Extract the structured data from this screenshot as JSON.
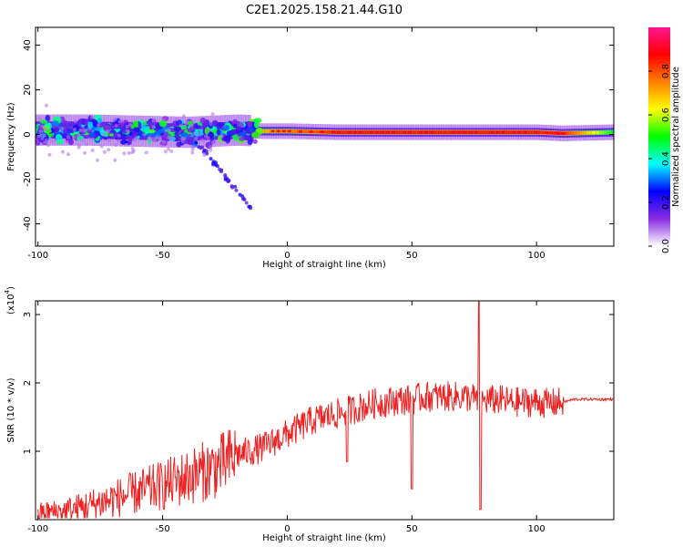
{
  "title": "C2E1.2025.158.21.44.G10",
  "chart_data": [
    {
      "type": "heatmap",
      "xlabel": "Height of straight line (km)",
      "ylabel": "Frequency (Hz)",
      "xlim": [
        -101,
        131
      ],
      "ylim": [
        -50,
        48
      ],
      "xticks": [
        -100,
        -50,
        0,
        50,
        100
      ],
      "yticks": [
        -40,
        -20,
        0,
        20,
        40
      ],
      "colorbar": {
        "label": "Normalized spectral amplitude",
        "range": [
          0,
          1
        ],
        "ticks": [
          "0.0",
          "0.2",
          "0.4",
          "0.6",
          "0.8"
        ],
        "stops": [
          "#ffffff",
          "#8a2be2",
          "#0000ff",
          "#00ffff",
          "#00ff00",
          "#ffff00",
          "#ff8000",
          "#ff0000",
          "#ff1493"
        ]
      },
      "ridge": {
        "x": [
          -100,
          -80,
          -60,
          -40,
          -20,
          -10,
          0,
          20,
          40,
          60,
          80,
          100,
          110,
          130
        ],
        "freq": [
          2,
          2,
          1.5,
          1,
          2,
          1.5,
          1.5,
          1,
          1,
          1,
          1,
          1,
          0.5,
          1
        ],
        "amplitude": [
          0.4,
          0.4,
          0.4,
          0.45,
          0.55,
          0.7,
          0.75,
          0.85,
          0.85,
          0.85,
          0.85,
          0.85,
          0.85,
          0.5
        ]
      },
      "streak": {
        "x": [
          -37,
          -14
        ],
        "freq": [
          -2,
          -34
        ]
      }
    },
    {
      "type": "line",
      "xlabel": "Height of straight line (km)",
      "ylabel": "SNR (10 * v/v)",
      "multiplier_label": "(x10",
      "multiplier_exp": "4",
      "xlim": [
        -101,
        131
      ],
      "ylim": [
        0,
        3.2
      ],
      "xticks": [
        -100,
        -50,
        0,
        50,
        100
      ],
      "yticks": [
        1,
        2,
        3
      ],
      "color": "#ee2222",
      "series": [
        {
          "x": [
            -100,
            -90,
            -80,
            -70,
            -60,
            -50,
            -40,
            -30,
            -25,
            -20,
            -15,
            -10,
            -5,
            0,
            5,
            10,
            15,
            20,
            25,
            30,
            35,
            40,
            45,
            50,
            55,
            60,
            65,
            70,
            75,
            77,
            80,
            85,
            90,
            95,
            100,
            105,
            110,
            111,
            115,
            120,
            125,
            131
          ],
          "values": [
            0.1,
            0.12,
            0.2,
            0.3,
            0.4,
            0.5,
            0.62,
            0.75,
            0.82,
            0.95,
            1.0,
            1.05,
            1.15,
            1.25,
            1.35,
            1.45,
            1.5,
            1.55,
            1.6,
            1.65,
            1.7,
            1.72,
            1.75,
            1.75,
            1.8,
            1.8,
            1.8,
            1.8,
            1.78,
            1.7,
            1.75,
            1.75,
            1.72,
            1.72,
            1.72,
            1.7,
            1.72,
            1.72,
            1.76,
            1.76,
            1.76,
            1.76
          ]
        }
      ]
    }
  ]
}
